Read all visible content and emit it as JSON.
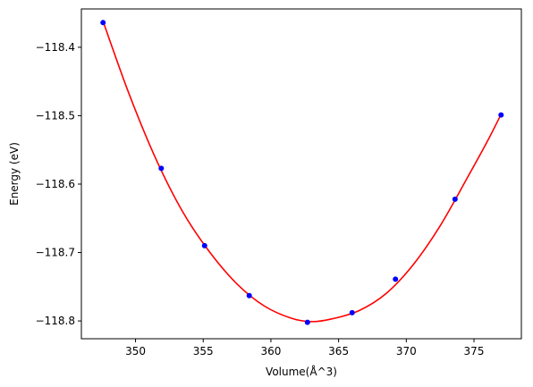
{
  "chart_data": {
    "type": "scatter",
    "title": "",
    "xlabel": "Volume(Å^3)",
    "ylabel": "Energy (eV)",
    "xlim": [
      346.0,
      378.5
    ],
    "ylim": [
      -118.826,
      -118.344
    ],
    "xticks": [
      350,
      355,
      360,
      365,
      370,
      375
    ],
    "xtick_labels": [
      "350",
      "355",
      "360",
      "365",
      "370",
      "375"
    ],
    "yticks": [
      -118.4,
      -118.5,
      -118.6,
      -118.7,
      -118.8
    ],
    "ytick_labels": [
      "−118.4",
      "−118.5",
      "−118.6",
      "−118.7",
      "−118.8"
    ],
    "grid": false,
    "legend": "none",
    "series": [
      {
        "kind": "points",
        "color": "#0000ff",
        "x": [
          347.6,
          351.9,
          355.1,
          358.4,
          362.7,
          366.0,
          369.2,
          373.6,
          377.0
        ],
        "y": [
          -118.364,
          -118.577,
          -118.69,
          -118.763,
          -118.802,
          -118.788,
          -118.739,
          -118.622,
          -118.499
        ]
      },
      {
        "kind": "fit-curve",
        "color": "#ff0000",
        "x": [
          347.6,
          349.5,
          351.5,
          353.5,
          355.5,
          357.5,
          359.5,
          361.5,
          363.0,
          364.5,
          366.5,
          368.5,
          370.5,
          372.5,
          374.5,
          376.0,
          377.0
        ],
        "y": [
          -118.362,
          -118.467,
          -118.563,
          -118.641,
          -118.7,
          -118.746,
          -118.778,
          -118.796,
          -118.801,
          -118.797,
          -118.785,
          -118.76,
          -118.718,
          -118.661,
          -118.591,
          -118.537,
          -118.498
        ]
      }
    ]
  }
}
